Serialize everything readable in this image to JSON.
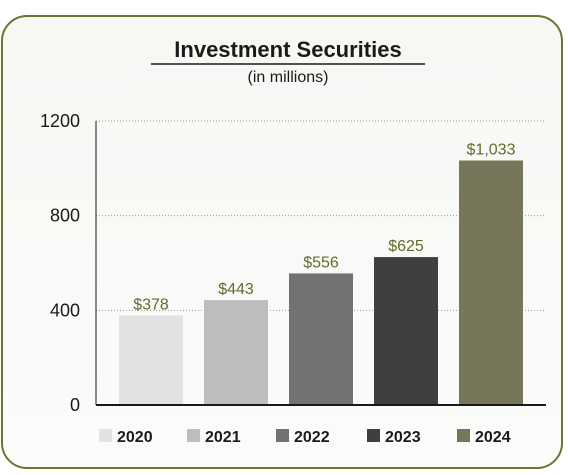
{
  "chart_data": {
    "type": "bar",
    "title": "Investment Securities",
    "subtitle": "(in millions)",
    "xlabel": "",
    "ylabel": "",
    "categories": [
      "2020",
      "2021",
      "2022",
      "2023",
      "2024"
    ],
    "values": [
      378,
      443,
      556,
      625,
      1033
    ],
    "data_labels": [
      "$378",
      "$443",
      "$556",
      "$625",
      "$1,033"
    ],
    "ylim": [
      0,
      1200
    ],
    "y_ticks": [
      0,
      400,
      800,
      1200
    ],
    "y_tick_labels": [
      "0",
      "400",
      "800",
      "1200"
    ],
    "grid": "horizontal dotted",
    "legend_position": "bottom",
    "legend": [
      "2020",
      "2021",
      "2022",
      "2023",
      "2024"
    ],
    "colors": [
      "#e2e2e2",
      "#bdbdbd",
      "#727274",
      "#3f3f41",
      "#77755a"
    ],
    "label_color": "#66682e",
    "border_color": "#6e7431"
  }
}
